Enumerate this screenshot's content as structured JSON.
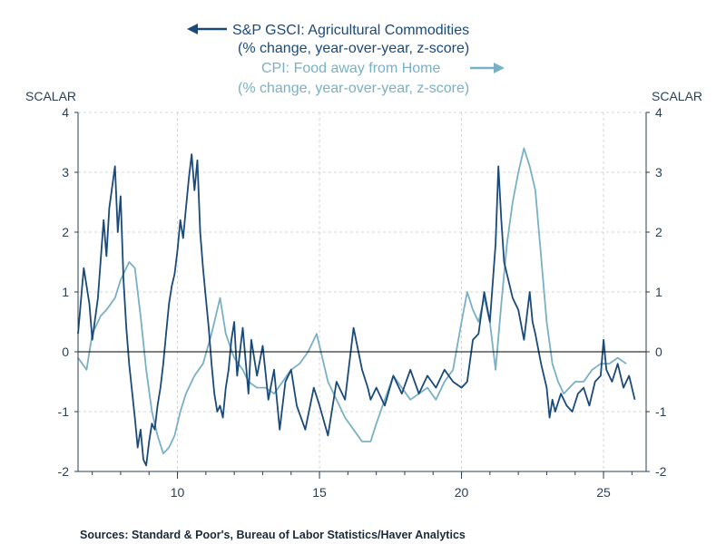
{
  "chart_data": {
    "type": "line",
    "title": "",
    "left_axis_label": "SCALAR",
    "right_axis_label": "SCALAR",
    "ylim": [
      -2,
      4
    ],
    "y_ticks": [
      -2,
      -1,
      0,
      1,
      2,
      3,
      4
    ],
    "y_tick_labels": [
      "-2",
      "-1",
      "0",
      "1",
      "2",
      "3",
      "4"
    ],
    "xlim": [
      2006.5,
      2026.5
    ],
    "x_ticks": [
      2010,
      2015,
      2020,
      2025
    ],
    "x_tick_labels": [
      "10",
      "15",
      "20",
      "25"
    ],
    "zero_line": true,
    "grid": true,
    "colors": {
      "gsci": "#1a4a7a",
      "cpi": "#7ab0c4",
      "zero": "#000000",
      "axis": "#2a3f55"
    },
    "series": [
      {
        "name": "S&P GSCI: Agricultural Commodities",
        "subtitle": "(% change, year-over-year, z-score)",
        "axis": "left",
        "x": [
          2006.5,
          2006.7,
          2006.9,
          2007.0,
          2007.2,
          2007.4,
          2007.5,
          2007.6,
          2007.8,
          2007.9,
          2008.0,
          2008.1,
          2008.2,
          2008.3,
          2008.5,
          2008.6,
          2008.7,
          2008.8,
          2008.9,
          2009.0,
          2009.1,
          2009.2,
          2009.3,
          2009.4,
          2009.5,
          2009.6,
          2009.7,
          2009.8,
          2009.9,
          2010.0,
          2010.1,
          2010.2,
          2010.3,
          2010.4,
          2010.5,
          2010.6,
          2010.7,
          2010.8,
          2010.9,
          2011.0,
          2011.1,
          2011.2,
          2011.3,
          2011.4,
          2011.5,
          2011.6,
          2011.7,
          2011.8,
          2011.9,
          2012.0,
          2012.1,
          2012.3,
          2012.5,
          2012.6,
          2012.8,
          2013.0,
          2013.2,
          2013.4,
          2013.6,
          2013.8,
          2014.0,
          2014.2,
          2014.5,
          2014.8,
          2015.0,
          2015.3,
          2015.6,
          2015.9,
          2016.2,
          2016.5,
          2016.7,
          2016.8,
          2017.0,
          2017.3,
          2017.6,
          2017.9,
          2018.2,
          2018.5,
          2018.8,
          2019.1,
          2019.4,
          2019.7,
          2020.0,
          2020.2,
          2020.4,
          2020.6,
          2020.8,
          2021.0,
          2021.2,
          2021.3,
          2021.4,
          2021.5,
          2021.6,
          2021.8,
          2022.0,
          2022.2,
          2022.4,
          2022.5,
          2022.6,
          2022.8,
          2023.0,
          2023.1,
          2023.2,
          2023.3,
          2023.5,
          2023.7,
          2023.9,
          2024.1,
          2024.3,
          2024.5,
          2024.7,
          2024.9,
          2025.0,
          2025.1,
          2025.3,
          2025.5,
          2025.7,
          2025.9,
          2026.1
        ],
        "values": [
          0.3,
          1.4,
          0.8,
          0.2,
          0.9,
          2.2,
          1.6,
          2.4,
          3.1,
          2.0,
          2.6,
          1.2,
          0.4,
          -0.2,
          -1.1,
          -1.6,
          -1.3,
          -1.8,
          -1.9,
          -1.5,
          -1.2,
          -1.3,
          -0.9,
          -0.6,
          -0.2,
          0.3,
          0.8,
          1.1,
          1.3,
          1.7,
          2.2,
          1.9,
          2.4,
          2.9,
          3.3,
          2.7,
          3.2,
          2.0,
          1.4,
          0.9,
          0.4,
          -0.2,
          -0.7,
          -1.0,
          -0.9,
          -1.1,
          -0.6,
          -0.3,
          0.2,
          0.5,
          -0.4,
          0.4,
          -0.7,
          0.2,
          -0.4,
          0.1,
          -0.8,
          -0.3,
          -1.3,
          -0.5,
          -0.3,
          -0.9,
          -1.3,
          -0.6,
          -0.9,
          -1.4,
          -0.5,
          -0.8,
          0.4,
          -0.3,
          -0.6,
          -0.8,
          -0.6,
          -0.9,
          -0.4,
          -0.7,
          -0.3,
          -0.7,
          -0.4,
          -0.6,
          -0.3,
          -0.5,
          -0.6,
          -0.5,
          0.2,
          0.3,
          1.0,
          0.5,
          1.8,
          3.1,
          2.2,
          1.5,
          1.3,
          0.9,
          0.7,
          0.2,
          1.0,
          0.5,
          0.3,
          -0.2,
          -0.6,
          -1.1,
          -0.8,
          -1.0,
          -0.7,
          -0.9,
          -1.0,
          -0.7,
          -0.6,
          -0.9,
          -0.5,
          -0.4,
          0.2,
          -0.3,
          -0.5,
          -0.2,
          -0.6,
          -0.4,
          -0.8
        ]
      },
      {
        "name": "CPI: Food away from Home",
        "subtitle": "(% change, year-over-year, z-score)",
        "axis": "right",
        "x": [
          2006.5,
          2006.8,
          2007.0,
          2007.3,
          2007.5,
          2007.8,
          2008.0,
          2008.3,
          2008.5,
          2008.7,
          2008.9,
          2009.1,
          2009.3,
          2009.5,
          2009.7,
          2009.9,
          2010.1,
          2010.3,
          2010.6,
          2010.9,
          2011.2,
          2011.5,
          2011.7,
          2012.0,
          2012.3,
          2012.5,
          2012.8,
          2013.1,
          2013.4,
          2013.7,
          2014.0,
          2014.3,
          2014.6,
          2014.9,
          2015.1,
          2015.3,
          2015.6,
          2015.9,
          2016.2,
          2016.5,
          2016.8,
          2017.0,
          2017.3,
          2017.6,
          2017.9,
          2018.2,
          2018.5,
          2018.8,
          2019.1,
          2019.4,
          2019.7,
          2020.0,
          2020.2,
          2020.4,
          2020.6,
          2020.8,
          2021.0,
          2021.2,
          2021.4,
          2021.6,
          2021.8,
          2022.0,
          2022.2,
          2022.4,
          2022.6,
          2022.8,
          2023.0,
          2023.2,
          2023.4,
          2023.6,
          2023.8,
          2024.0,
          2024.3,
          2024.6,
          2024.9,
          2025.2,
          2025.5,
          2025.8
        ],
        "values": [
          -0.1,
          -0.3,
          0.3,
          0.6,
          0.7,
          0.9,
          1.2,
          1.5,
          1.4,
          0.6,
          -0.3,
          -1.0,
          -1.4,
          -1.7,
          -1.6,
          -1.4,
          -1.0,
          -0.7,
          -0.4,
          -0.2,
          0.3,
          0.9,
          0.3,
          -0.1,
          -0.3,
          -0.5,
          -0.6,
          -0.6,
          -0.7,
          -0.5,
          -0.3,
          -0.2,
          0.0,
          0.3,
          -0.1,
          -0.5,
          -0.8,
          -1.1,
          -1.3,
          -1.5,
          -1.5,
          -1.2,
          -0.8,
          -0.4,
          -0.6,
          -0.8,
          -0.7,
          -0.6,
          -0.8,
          -0.5,
          -0.3,
          0.5,
          1.0,
          0.7,
          0.5,
          0.9,
          0.5,
          -0.3,
          0.8,
          1.8,
          2.5,
          3.0,
          3.4,
          3.1,
          2.7,
          1.6,
          0.5,
          -0.2,
          -0.5,
          -0.7,
          -0.6,
          -0.5,
          -0.5,
          -0.3,
          -0.2,
          -0.2,
          -0.1,
          -0.2
        ]
      }
    ]
  },
  "legend": {
    "gsci_title": "S&P GSCI: Agricultural Commodities",
    "gsci_subtitle": "(% change, year-over-year, z-score)",
    "cpi_title": "CPI: Food away from Home",
    "cpi_subtitle": "(% change, year-over-year, z-score)"
  },
  "source": "Sources:  Standard & Poor's, Bureau of Labor Statistics/Haver Analytics"
}
